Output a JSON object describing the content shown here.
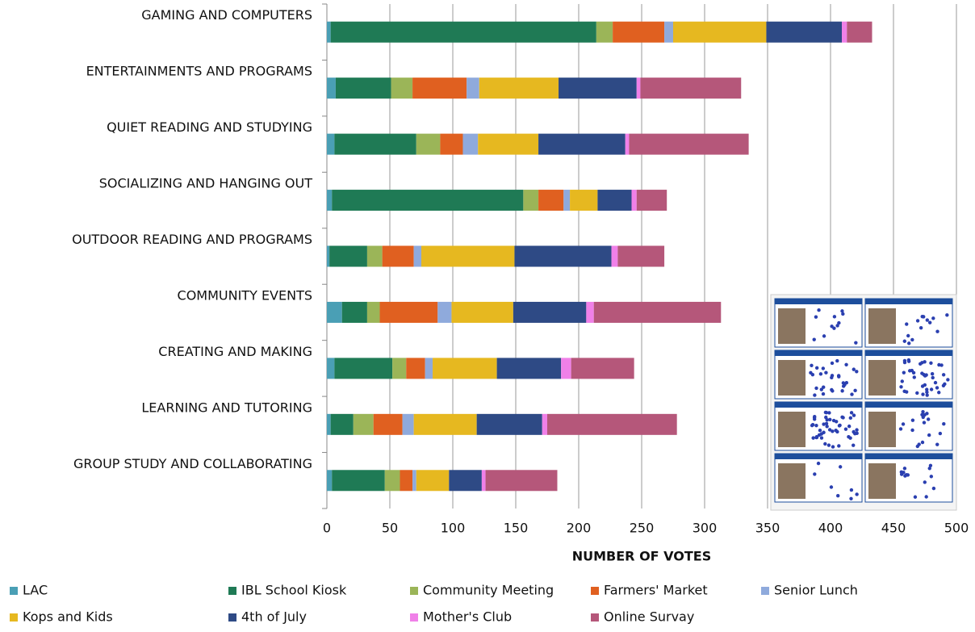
{
  "chart_data": {
    "type": "stacked-bar-horizontal",
    "categories": [
      "GAMING AND COMPUTERS",
      "ENTERTAINMENTS AND PROGRAMS",
      "QUIET READING AND STUDYING",
      "SOCIALIZING AND HANGING OUT",
      "OUTDOOR READING AND PROGRAMS",
      "COMMUNITY EVENTS",
      "CREATING AND MAKING",
      "LEARNING AND TUTORING",
      "GROUP STUDY AND COLLABORATING"
    ],
    "series": [
      {
        "name": "LAC",
        "color": "#4a9fb5",
        "values": [
          3,
          7,
          6,
          4,
          2,
          12,
          6,
          3,
          4
        ]
      },
      {
        "name": "IBL School Kiosk",
        "color": "#1f7a55",
        "values": [
          211,
          44,
          65,
          152,
          30,
          20,
          46,
          18,
          42
        ]
      },
      {
        "name": "Community Meeting",
        "color": "#9bb558",
        "values": [
          13,
          17,
          19,
          12,
          12,
          10,
          11,
          16,
          12
        ]
      },
      {
        "name": "Farmers' Market",
        "color": "#e06020",
        "values": [
          41,
          43,
          18,
          20,
          25,
          46,
          15,
          23,
          10
        ]
      },
      {
        "name": "Senior Lunch",
        "color": "#8faadc",
        "values": [
          7,
          10,
          12,
          5,
          6,
          11,
          6,
          9,
          3
        ]
      },
      {
        "name": "Kops and Kids",
        "color": "#e6b820",
        "values": [
          74,
          63,
          48,
          22,
          74,
          49,
          51,
          50,
          26
        ]
      },
      {
        "name": "4th of July",
        "color": "#2e4a85",
        "values": [
          60,
          62,
          69,
          27,
          77,
          58,
          51,
          52,
          26
        ]
      },
      {
        "name": "Mother's Club",
        "color": "#f080e8",
        "values": [
          4,
          3,
          3,
          4,
          5,
          6,
          8,
          4,
          3
        ]
      },
      {
        "name": "Online Survay",
        "color": "#b5577a",
        "values": [
          20,
          80,
          95,
          24,
          37,
          101,
          50,
          103,
          57
        ]
      }
    ],
    "xlim": [
      0,
      500
    ],
    "xticks": [
      0,
      50,
      100,
      150,
      200,
      250,
      300,
      350,
      400,
      450,
      500
    ],
    "x_label": "NUMBER OF VOTES",
    "grid": true,
    "legend": "bottom"
  }
}
